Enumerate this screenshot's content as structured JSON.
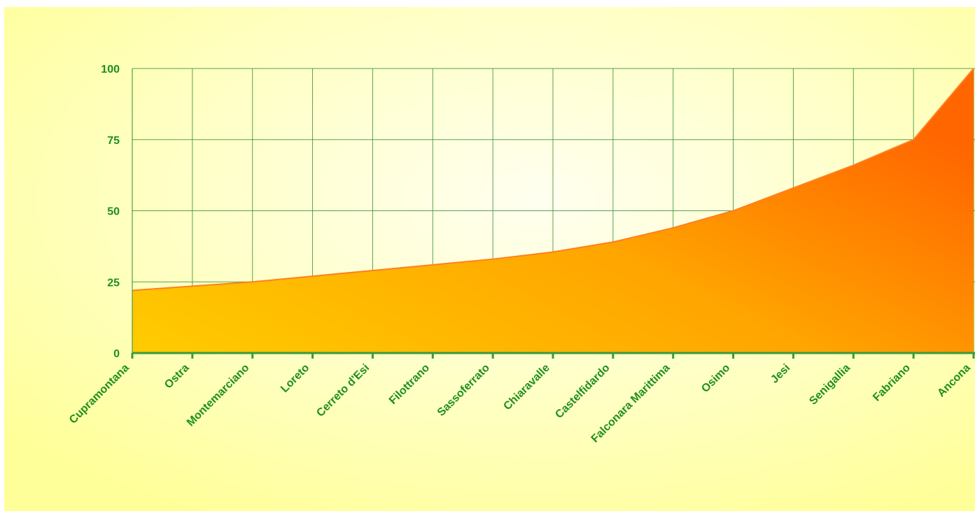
{
  "chart_data": {
    "type": "area",
    "title": "",
    "xlabel": "",
    "ylabel": "",
    "categories": [
      "Cupramontana",
      "Ostra",
      "Montemarciano",
      "Loreto",
      "Cerreto d'Esi",
      "Filottrano",
      "Sassoferrato",
      "Chiaravalle",
      "Castelfidardo",
      "Falconara Marittima",
      "Osimo",
      "Jesi",
      "Senigallia",
      "Fabriano",
      "Ancona"
    ],
    "values": [
      22,
      23.5,
      25,
      27,
      29,
      31,
      33,
      35.5,
      39,
      44,
      50,
      58,
      66,
      75,
      100
    ],
    "ylim": [
      0,
      100
    ],
    "yticks": [
      0,
      25,
      50,
      75,
      100
    ],
    "grid": true,
    "legend": "none",
    "colors": {
      "background_outer": "#ffff99",
      "background_inner": "#fffff0",
      "grid": "#2e8b2e",
      "axis_text": "#1f8f1f",
      "area_left": "#ffcc00",
      "area_right": "#ff6600",
      "area_edge": "#ff7f1f",
      "baseline": "#3a9a3a"
    }
  }
}
